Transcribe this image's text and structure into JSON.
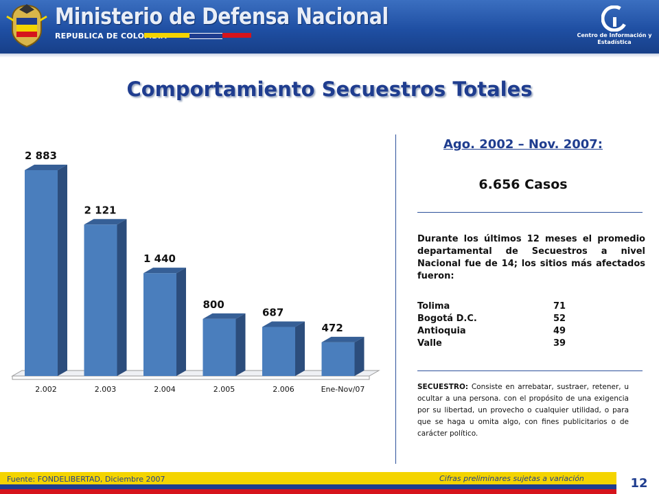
{
  "header": {
    "ministry_title": "Ministerio de Defensa Nacional",
    "subtitle": "REPUBLICA DE COLOMBIA",
    "center_name": "Centro de Información y Estadística",
    "logo_icon": "crest-icon",
    "center_icon": "ci-logo-icon"
  },
  "page_title": "Comportamiento Secuestros Totales",
  "chart_data": {
    "type": "bar",
    "categories": [
      "2.002",
      "2.003",
      "2.004",
      "2.005",
      "2.006",
      "Ene-Nov/07"
    ],
    "values": [
      2883,
      2121,
      1440,
      800,
      687,
      472
    ],
    "value_labels": [
      "2 883",
      "2 121",
      "1 440",
      "800",
      "687",
      "472"
    ],
    "ylim": [
      0,
      3000
    ],
    "grid": false,
    "style": "3d-columns",
    "bar_color": "#4a7ebd"
  },
  "panel": {
    "period": "Ago. 2002 – Nov. 2007:",
    "cases": "6.656 Casos",
    "summary": "Durante los últimos 12 meses el promedio departamental de Secuestros a nivel Nacional fue de 14; los sitios más afectados fueron:",
    "places": [
      {
        "name": "Tolima",
        "value": "71"
      },
      {
        "name": "Bogotá D.C.",
        "value": "52"
      },
      {
        "name": "Antioquia",
        "value": "49"
      },
      {
        "name": "Valle",
        "value": "39"
      }
    ],
    "definition_term": "SECUESTRO:",
    "definition_text": " Consiste en arrebatar, sustraer, retener, u ocultar a una persona. con el propósito de una exigencia por su libertad, un provecho o cualquier utilidad, o para que se haga u omita algo, con fines publicitarios o de carácter político."
  },
  "footer": {
    "source": "Fuente: FONDELIBERTAD, Diciembre 2007",
    "note": "Cifras preliminares sujetas a variación",
    "page_number": "12"
  },
  "colors": {
    "brand_blue": "#1f3d8f",
    "flag_yellow": "#f4d400",
    "flag_red": "#d6141c"
  }
}
